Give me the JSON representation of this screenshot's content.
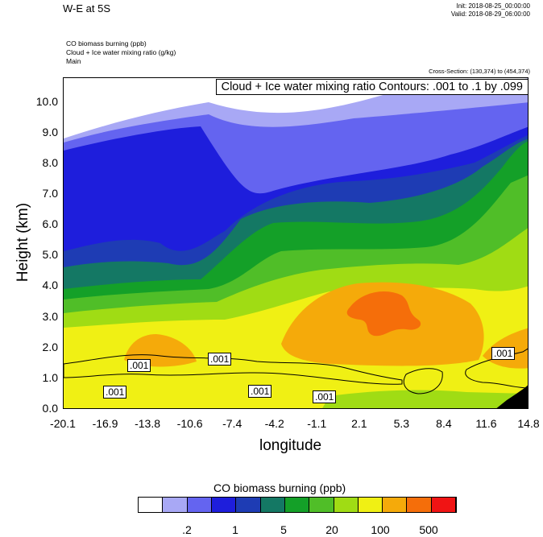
{
  "header": {
    "title": "W-E at 5S",
    "init": "Init: 2018-08-25_00:00:00",
    "valid": "Valid: 2018-08-29_06:00:00"
  },
  "fields": [
    "CO biomass burning   (ppb)",
    "Cloud + Ice water mixing ratio   (g/kg)",
    "Main"
  ],
  "cross_section": "Cross-Section: (130,374) to (454,374)",
  "contour_info": "Cloud + Ice water mixing ratio Contours: .001 to .1 by .099",
  "contour_labels": [
    ".001",
    ".001",
    ".001",
    ".001",
    ".001",
    ".001"
  ],
  "chart_data": {
    "type": "heatmap",
    "title": "W-E at 5S",
    "xlabel": "longitude",
    "ylabel": "Height (km)",
    "x_ticks": [
      "-20.1",
      "-16.9",
      "-13.8",
      "-10.6",
      "-7.4",
      "-4.2",
      "-1.1",
      "2.1",
      "5.3",
      "8.4",
      "11.6",
      "14.8"
    ],
    "y_ticks": [
      "0.0",
      "1.0",
      "2.0",
      "3.0",
      "4.0",
      "5.0",
      "6.0",
      "7.0",
      "8.0",
      "9.0",
      "10.0"
    ],
    "ylim": [
      0,
      10.8
    ],
    "colorbar": {
      "title": "CO biomass burning  (ppb)",
      "tick_labels": [
        ".2",
        "1",
        "5",
        "20",
        "100",
        "500"
      ],
      "colors": [
        "#ffffff",
        "#a8a8f5",
        "#6464f0",
        "#1e1edc",
        "#1e3cb4",
        "#147864",
        "#14a028",
        "#50be28",
        "#a0dc14",
        "#f0f014",
        "#f5aa0a",
        "#f56e0a",
        "#f01414"
      ]
    }
  }
}
